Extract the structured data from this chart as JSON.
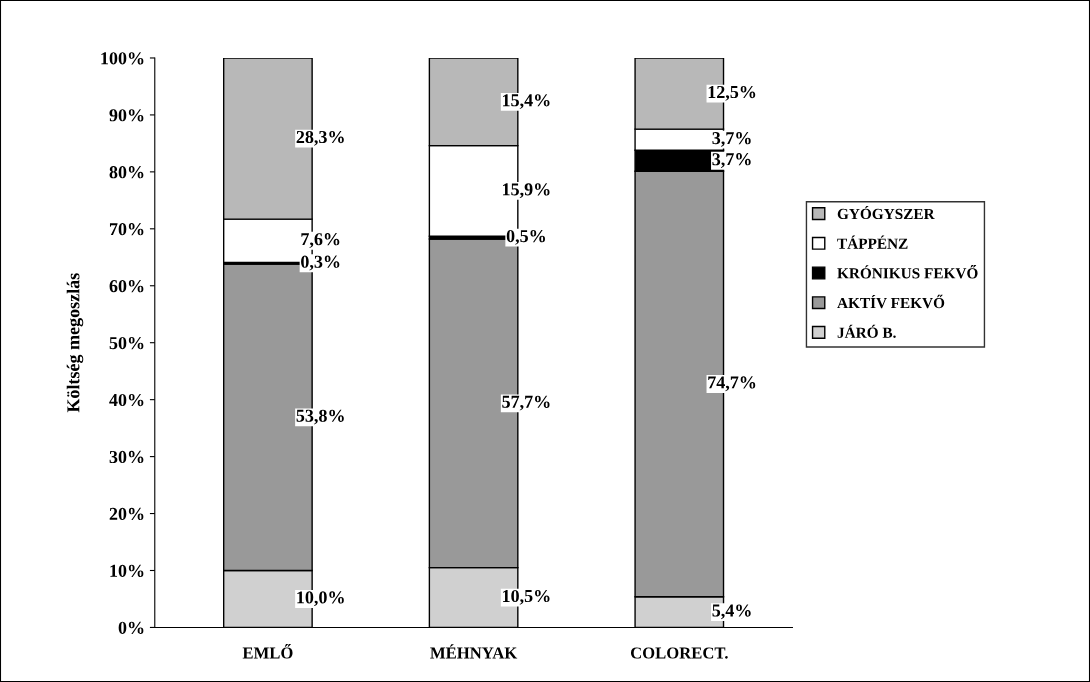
{
  "chart_data": {
    "type": "bar",
    "stacked": true,
    "ylabel": "Költség megoszlás",
    "categories": [
      "EMLŐ",
      "MÉHNYAK",
      "COLORECT."
    ],
    "series": [
      {
        "name": "JÁRÓ B.",
        "color": "#d0d0d0",
        "values": [
          10.0,
          10.5,
          5.4
        ],
        "value_labels": [
          "10,0%",
          "10,5%",
          "5,4%"
        ]
      },
      {
        "name": "AKTÍV FEKVŐ",
        "color": "#999999",
        "values": [
          53.8,
          57.7,
          74.7
        ],
        "value_labels": [
          "53,8%",
          "57,7%",
          "74,7%"
        ]
      },
      {
        "name": "KRÓNIKUS FEKVŐ",
        "color": "#000000",
        "values": [
          0.3,
          0.5,
          3.7
        ],
        "value_labels": [
          "0,3%",
          "0,5%",
          "3,7%"
        ]
      },
      {
        "name": "TÁPPÉNZ",
        "color": "#ffffff",
        "values": [
          7.6,
          15.9,
          3.7
        ],
        "value_labels": [
          "7,6%",
          "15,9%",
          "3,7%"
        ]
      },
      {
        "name": "GYÓGYSZER",
        "color": "#b8b8b8",
        "values": [
          28.3,
          15.4,
          12.5
        ],
        "value_labels": [
          "28,3%",
          "15,4%",
          "12,5%"
        ]
      }
    ],
    "ylim": [
      0,
      100
    ],
    "yticks": [
      {
        "value": 0,
        "label": "0%"
      },
      {
        "value": 10,
        "label": "10%"
      },
      {
        "value": 20,
        "label": "20%"
      },
      {
        "value": 30,
        "label": "30%"
      },
      {
        "value": 40,
        "label": "40%"
      },
      {
        "value": 50,
        "label": "50%"
      },
      {
        "value": 60,
        "label": "60%"
      },
      {
        "value": 70,
        "label": "70%"
      },
      {
        "value": 80,
        "label": "80%"
      },
      {
        "value": 90,
        "label": "90%"
      },
      {
        "value": 100,
        "label": "100%"
      }
    ],
    "grid": false,
    "legend": "right"
  }
}
